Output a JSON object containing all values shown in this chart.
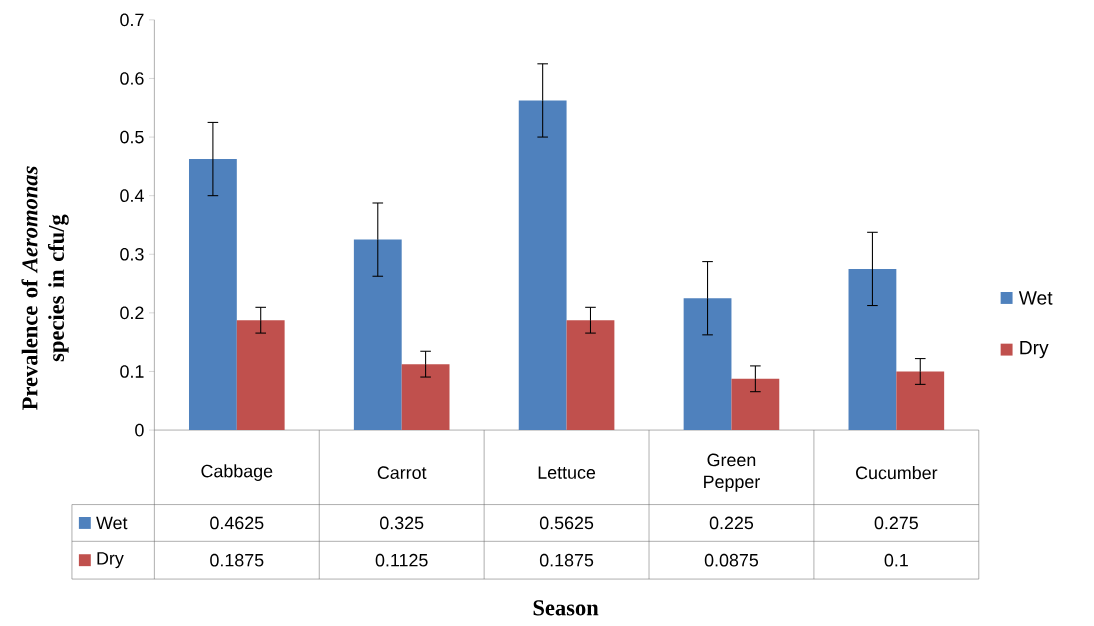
{
  "chart_data": {
    "type": "bar",
    "xlabel": "Season",
    "ylabel": "Prevalence of *Aeromonas* species in cfu/g",
    "categories": [
      "Cabbage",
      "Carrot",
      "Lettuce",
      "Green Pepper",
      "Cucumber"
    ],
    "series": [
      {
        "name": "Wet",
        "color": "#4f81bd",
        "values": [
          0.4625,
          0.325,
          0.5625,
          0.225,
          0.275
        ],
        "errors": [
          0.0625,
          0.0625,
          0.0625,
          0.0625,
          0.0625
        ]
      },
      {
        "name": "Dry",
        "color": "#c0504d",
        "values": [
          0.1875,
          0.1125,
          0.1875,
          0.0875,
          0.1
        ],
        "errors": [
          0.022,
          0.022,
          0.022,
          0.022,
          0.022
        ]
      }
    ],
    "ylim": [
      0,
      0.7
    ],
    "yticks": [
      0,
      0.1,
      0.2,
      0.3,
      0.4,
      0.5,
      0.6,
      0.7
    ],
    "data_labels": true,
    "legend": "right",
    "grid": false
  }
}
